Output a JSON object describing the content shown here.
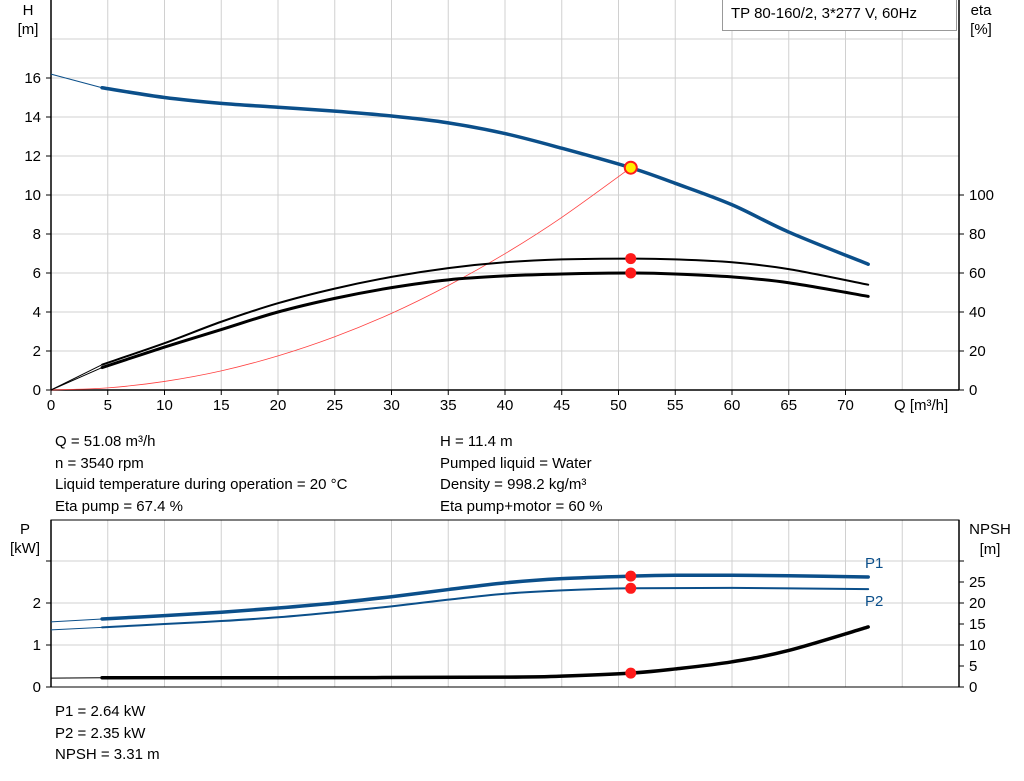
{
  "title_box": "TP 80-160/2, 3*277 V, 60Hz",
  "info_left": [
    "Q = 51.08 m³/h",
    "n = 3540 rpm",
    "Liquid temperature during operation = 20 °C",
    "Eta pump = 67.4 %"
  ],
  "info_right": [
    "H = 11.4 m",
    "Pumped liquid = Water",
    "Density = 998.2 kg/m³",
    "Eta pump+motor = 60 %"
  ],
  "info_bottom": [
    "P1 = 2.64 kW",
    "P2 = 2.35 kW",
    "NPSH = 3.31 m"
  ],
  "colors": {
    "head": "#0b4f8a",
    "eta": "#000000",
    "system": "#ff4040",
    "power": "#0b4f8a",
    "npsh": "#000000",
    "marker": "#ff1a1a",
    "op_point": "#ffee00",
    "grid": "#d0d0d0"
  },
  "chart_data": [
    {
      "type": "line",
      "xlabel": "Q [m³/h]",
      "ylabel": "H\n[m]",
      "ylabel_lines": [
        "H",
        "[m]"
      ],
      "y2label_lines": [
        "eta",
        "[%]"
      ],
      "xlim": [
        0,
        80
      ],
      "ylim": [
        0,
        20
      ],
      "y2lim": [
        0,
        200
      ],
      "xticks": [
        "0",
        "5",
        "10",
        "15",
        "20",
        "25",
        "30",
        "35",
        "40",
        "45",
        "50",
        "55",
        "60",
        "65",
        "70"
      ],
      "yticks": [
        "0",
        "2",
        "4",
        "6",
        "8",
        "10",
        "12",
        "14",
        "16"
      ],
      "y2ticks": [
        "0",
        "20",
        "40",
        "60",
        "80",
        "100"
      ],
      "grid": true,
      "operating_point": {
        "q": 51.08,
        "h": 11.4,
        "eta_pump": 67.4,
        "eta_pump_motor": 60
      },
      "series": [
        {
          "id": "head",
          "axis": "H",
          "x": [
            0,
            4.5,
            10,
            15,
            20,
            25,
            30,
            35,
            40,
            45,
            51.08,
            55,
            60,
            65,
            72
          ],
          "y": [
            16.2,
            15.5,
            15.0,
            14.7,
            14.5,
            14.3,
            14.05,
            13.7,
            13.15,
            12.4,
            11.4,
            10.6,
            9.5,
            8.1,
            6.45
          ]
        },
        {
          "id": "eta_pump",
          "axis": "eta",
          "x": [
            0,
            4.5,
            10,
            15,
            20,
            25,
            30,
            35,
            40,
            45,
            51.08,
            55,
            60,
            65,
            72
          ],
          "y": [
            0,
            13,
            24,
            35,
            44.5,
            52,
            58,
            62.5,
            65.5,
            67,
            67.4,
            67,
            65.5,
            62,
            54
          ]
        },
        {
          "id": "eta_pump_motor",
          "axis": "eta",
          "x": [
            0,
            4.5,
            10,
            15,
            20,
            25,
            30,
            35,
            40,
            45,
            51.08,
            55,
            60,
            65,
            72
          ],
          "y": [
            0,
            11.5,
            22,
            31,
            40,
            47,
            52.5,
            56.5,
            58.5,
            59.5,
            60,
            59.5,
            58,
            55,
            48
          ]
        },
        {
          "id": "system",
          "axis": "H",
          "x": [
            0,
            5,
            10,
            15,
            20,
            25,
            30,
            35,
            40,
            45,
            51.08
          ],
          "y": [
            0,
            0.11,
            0.44,
            0.98,
            1.75,
            2.73,
            3.93,
            5.36,
            6.99,
            8.85,
            11.4
          ]
        }
      ]
    },
    {
      "type": "line",
      "ylabel_lines": [
        "P",
        "[kW]"
      ],
      "y2label_lines": [
        "NPSH",
        "[m]"
      ],
      "xlim": [
        0,
        80
      ],
      "ylim": [
        0,
        3.6
      ],
      "y2lim": [
        0,
        36
      ],
      "yticks": [
        "0",
        "1",
        "2"
      ],
      "y2ticks": [
        "0",
        "5",
        "10",
        "15",
        "20",
        "25"
      ],
      "grid": true,
      "series": [
        {
          "id": "P1",
          "name": "P1",
          "axis": "P",
          "x": [
            0,
            4.5,
            10,
            15,
            20,
            25,
            30,
            35,
            40,
            45,
            51.08,
            55,
            60,
            65,
            72
          ],
          "y": [
            1.55,
            1.62,
            1.7,
            1.78,
            1.88,
            2.0,
            2.15,
            2.32,
            2.48,
            2.58,
            2.64,
            2.66,
            2.66,
            2.65,
            2.62
          ]
        },
        {
          "id": "P2",
          "name": "P2",
          "axis": "P",
          "x": [
            0,
            4.5,
            10,
            15,
            20,
            25,
            30,
            35,
            40,
            45,
            51.08,
            60,
            72
          ],
          "y": [
            1.36,
            1.42,
            1.5,
            1.57,
            1.66,
            1.78,
            1.92,
            2.08,
            2.22,
            2.3,
            2.35,
            2.36,
            2.33
          ]
        },
        {
          "id": "NPSH",
          "axis": "NPSH",
          "x": [
            0,
            4.5,
            20,
            40,
            45,
            51.08,
            55,
            60,
            65,
            72
          ],
          "y": [
            2.1,
            2.2,
            2.2,
            2.35,
            2.6,
            3.31,
            4.3,
            6.0,
            8.7,
            14.3
          ]
        }
      ],
      "operating_point": {
        "q": 51.08,
        "p1": 2.64,
        "p2": 2.35,
        "npsh": 3.31
      }
    }
  ]
}
